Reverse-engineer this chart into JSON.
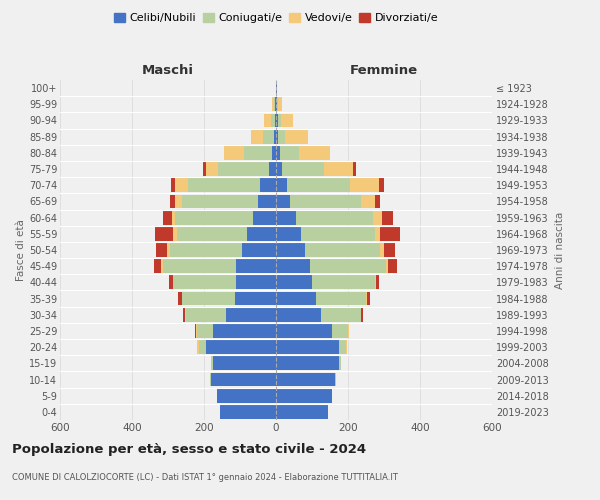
{
  "age_groups": [
    "0-4",
    "5-9",
    "10-14",
    "15-19",
    "20-24",
    "25-29",
    "30-34",
    "35-39",
    "40-44",
    "45-49",
    "50-54",
    "55-59",
    "60-64",
    "65-69",
    "70-74",
    "75-79",
    "80-84",
    "85-89",
    "90-94",
    "95-99",
    "100+"
  ],
  "birth_years": [
    "2019-2023",
    "2014-2018",
    "2009-2013",
    "2004-2008",
    "1999-2003",
    "1994-1998",
    "1989-1993",
    "1984-1988",
    "1979-1983",
    "1974-1978",
    "1969-1973",
    "1964-1968",
    "1959-1963",
    "1954-1958",
    "1949-1953",
    "1944-1948",
    "1939-1943",
    "1934-1938",
    "1929-1933",
    "1924-1928",
    "≤ 1923"
  ],
  "colors": {
    "celibi": "#4472c4",
    "coniugati": "#b8d0a0",
    "vedovi": "#f5c97a",
    "divorziati": "#c0392b"
  },
  "maschi": {
    "celibi": [
      155,
      165,
      180,
      175,
      195,
      175,
      140,
      115,
      110,
      110,
      95,
      80,
      65,
      50,
      45,
      20,
      10,
      5,
      3,
      2,
      0
    ],
    "coniugati": [
      0,
      0,
      2,
      5,
      20,
      45,
      110,
      145,
      175,
      205,
      200,
      195,
      215,
      210,
      200,
      140,
      80,
      30,
      12,
      3,
      0
    ],
    "vedovi": [
      0,
      0,
      0,
      0,
      5,
      2,
      2,
      2,
      2,
      5,
      8,
      10,
      10,
      20,
      35,
      35,
      55,
      35,
      18,
      5,
      0
    ],
    "divorziati": [
      0,
      0,
      0,
      0,
      0,
      2,
      5,
      10,
      10,
      20,
      30,
      50,
      25,
      15,
      12,
      8,
      0,
      0,
      0,
      0,
      0
    ]
  },
  "femmine": {
    "celibi": [
      145,
      155,
      165,
      175,
      175,
      155,
      125,
      110,
      100,
      95,
      80,
      70,
      55,
      40,
      30,
      18,
      10,
      5,
      5,
      3,
      2
    ],
    "coniugati": [
      0,
      0,
      2,
      5,
      20,
      45,
      110,
      140,
      175,
      210,
      210,
      205,
      215,
      195,
      175,
      115,
      55,
      20,
      8,
      2,
      0
    ],
    "vedovi": [
      0,
      0,
      0,
      0,
      2,
      2,
      2,
      2,
      2,
      5,
      10,
      15,
      25,
      40,
      80,
      80,
      85,
      65,
      35,
      12,
      2
    ],
    "divorziati": [
      0,
      0,
      0,
      0,
      0,
      2,
      5,
      10,
      10,
      25,
      30,
      55,
      30,
      15,
      15,
      8,
      0,
      0,
      0,
      0,
      0
    ]
  },
  "title": "Popolazione per età, sesso e stato civile - 2024",
  "subtitle": "COMUNE DI CALOLZIOCORTE (LC) - Dati ISTAT 1° gennaio 2024 - Elaborazione TUTTITALIA.IT",
  "xlabel_left": "Maschi",
  "xlabel_right": "Femmine",
  "ylabel_left": "Fasce di età",
  "ylabel_right": "Anni di nascita",
  "xlim": 600,
  "legend_labels": [
    "Celibi/Nubili",
    "Coniugati/e",
    "Vedovi/e",
    "Divorziati/e"
  ],
  "bg_color": "#f0f0f0",
  "plot_bg": "#f0f0f0"
}
